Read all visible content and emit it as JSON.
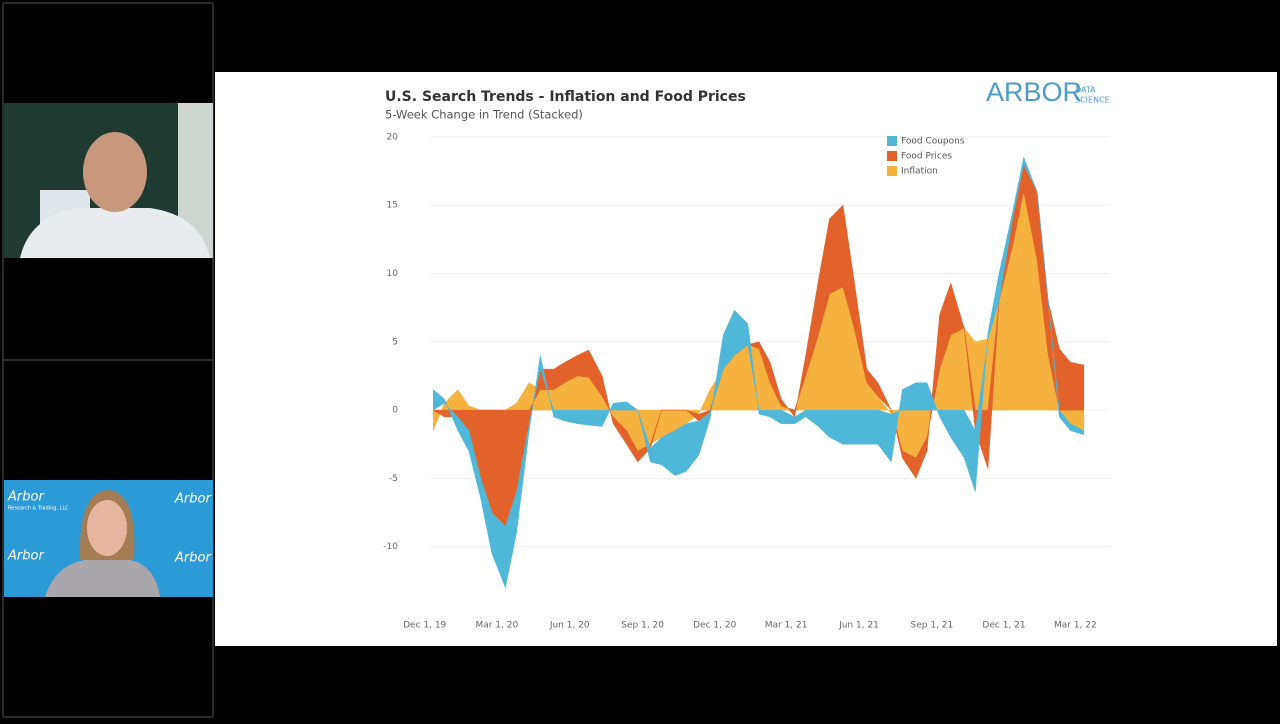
{
  "logo": {
    "main": "ARBOR",
    "sub1": "DATA",
    "sub2": "SCIENCE"
  },
  "backdrop": {
    "brand": "Arbor",
    "sub": "Research & Trading, LLC"
  },
  "chart_data": {
    "type": "area",
    "stacked": true,
    "title": "U.S. Search Trends - Inflation and Food Prices",
    "subtitle": "5-Week Change in Trend (Stacked)",
    "grid": true,
    "legend": "top-right",
    "x": [
      "2020-01-01",
      "2020-01-15",
      "2020-02-01",
      "2020-02-15",
      "2020-03-01",
      "2020-03-15",
      "2020-04-01",
      "2020-04-15",
      "2020-05-01",
      "2020-05-15",
      "2020-06-01",
      "2020-06-15",
      "2020-07-01",
      "2020-07-15",
      "2020-08-01",
      "2020-08-15",
      "2020-09-01",
      "2020-09-15",
      "2020-10-01",
      "2020-10-15",
      "2020-11-01",
      "2020-11-15",
      "2020-12-01",
      "2020-12-15",
      "2021-01-01",
      "2021-01-15",
      "2021-02-01",
      "2021-02-15",
      "2021-03-01",
      "2021-03-15",
      "2021-04-01",
      "2021-04-15",
      "2021-05-01",
      "2021-05-15",
      "2021-06-01",
      "2021-06-15",
      "2021-07-01",
      "2021-07-15",
      "2021-08-01",
      "2021-08-15",
      "2021-09-01",
      "2021-09-15",
      "2021-10-01",
      "2021-10-15",
      "2021-11-01",
      "2021-11-15",
      "2021-12-01",
      "2021-12-15",
      "2022-01-01",
      "2022-01-15",
      "2022-02-01",
      "2022-02-15",
      "2022-03-01",
      "2022-03-15",
      "2022-04-01"
    ],
    "series": [
      {
        "name": "Food Coupons",
        "color": "#4fb8d9",
        "values": [
          1.5,
          0.3,
          -1,
          -1.5,
          -1.5,
          -3,
          -4.5,
          -3,
          -0.5,
          1,
          -0.5,
          -0.8,
          -1,
          -1.1,
          -1.2,
          0.5,
          0.6,
          0,
          -1,
          -2,
          -3.3,
          -3.5,
          -2.5,
          -0.5,
          2.5,
          3.3,
          1.5,
          -0.3,
          -0.5,
          -1,
          -0.5,
          -0.5,
          -1.2,
          -2,
          -2.5,
          -2.5,
          -2.5,
          -2.5,
          -3.5,
          1.5,
          2,
          2,
          -0.5,
          -2,
          -3.5,
          -4.5,
          0.5,
          2,
          0.5,
          0.5,
          0,
          0,
          -0.5,
          -0.5,
          -0.3
        ]
      },
      {
        "name": "Food Prices",
        "color": "#e2622a",
        "values": [
          0,
          -0.5,
          -0.5,
          -1.5,
          -5,
          -7.5,
          -8.5,
          -6,
          -1,
          1.5,
          1.5,
          1.5,
          1.5,
          2,
          1.5,
          -0.5,
          -1,
          -0.8,
          -0.3,
          0,
          0,
          0,
          -0.5,
          -0.2,
          0,
          0,
          0,
          0.5,
          1.5,
          0.5,
          -0.5,
          1.5,
          4,
          5.5,
          6,
          3.5,
          1,
          1,
          0,
          -0.5,
          -1.5,
          -1,
          4,
          3.8,
          0,
          -1.5,
          -4.3,
          0,
          2,
          2,
          5,
          4,
          4.5,
          3.5,
          3.3
        ]
      },
      {
        "name": "Inflation",
        "color": "#f6b23f",
        "values": [
          -1.5,
          0.5,
          1.5,
          0.3,
          0,
          0,
          0,
          0.5,
          2,
          1.5,
          1.5,
          2,
          2.5,
          2.4,
          1,
          -0.5,
          -1.5,
          -3,
          -2.5,
          -2,
          -1.5,
          -1,
          -0.3,
          1.5,
          3,
          4,
          4.8,
          4.5,
          2,
          0.3,
          0,
          2.5,
          5.5,
          8.5,
          9,
          6,
          2,
          1,
          -0.3,
          -3,
          -3.5,
          -2,
          3,
          5.5,
          6,
          5,
          5.2,
          8,
          12,
          16,
          11,
          4,
          0,
          -1,
          -1.5
        ]
      }
    ],
    "xlim": [
      "2019-11-20",
      "2022-04-15"
    ],
    "xticks": [
      {
        "value": "2019-12-01",
        "label": "Dec 1, 19"
      },
      {
        "value": "2020-03-01",
        "label": "Mar 1, 20"
      },
      {
        "value": "2020-06-01",
        "label": "Jun 1, 20"
      },
      {
        "value": "2020-09-01",
        "label": "Sep 1, 20"
      },
      {
        "value": "2020-12-01",
        "label": "Dec 1, 20"
      },
      {
        "value": "2021-03-01",
        "label": "Mar 1, 21"
      },
      {
        "value": "2021-06-01",
        "label": "Jun 1, 21"
      },
      {
        "value": "2021-09-01",
        "label": "Sep 1, 21"
      },
      {
        "value": "2021-12-01",
        "label": "Dec 1, 21"
      },
      {
        "value": "2022-03-01",
        "label": "Mar 1, 22"
      }
    ],
    "ylim": [
      -15,
      20.5
    ],
    "yticks": [
      -10,
      -5,
      0,
      5,
      10,
      15,
      20
    ]
  }
}
